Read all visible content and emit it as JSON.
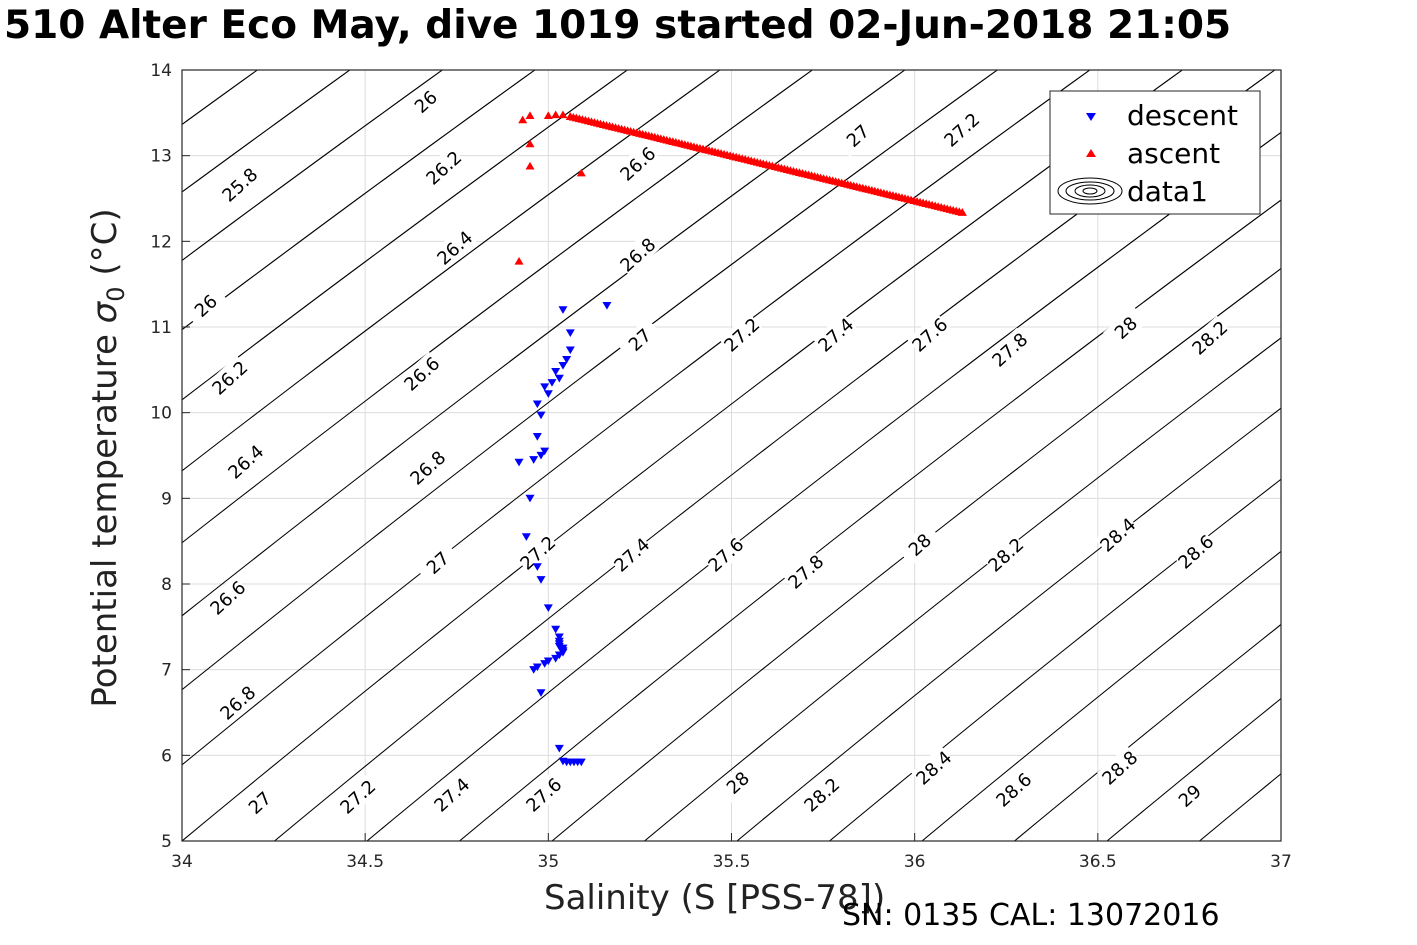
{
  "title": "510 Alter Eco May, dive 1019 started 02-Jun-2018 21:05",
  "footer": "SN: 0135  CAL: 13072016",
  "chart_data": {
    "type": "scatter",
    "title": "510 Alter Eco May, dive 1019 started 02-Jun-2018 21:05",
    "xlabel": "Salinity (S [PSS-78])",
    "ylabel": "Potential temperature σ_0 (°C)",
    "ylabel_main": "Potential temperature ",
    "ylabel_sigma": "σ",
    "ylabel_sub": "0",
    "ylabel_unit": " (°C)",
    "xlim": [
      34,
      37
    ],
    "ylim": [
      5,
      14
    ],
    "xticks": [
      34,
      34.5,
      35,
      35.5,
      36,
      36.5,
      37
    ],
    "xtick_labels": [
      "34",
      "34.5",
      "35",
      "35.5",
      "36",
      "36.5",
      "37"
    ],
    "yticks": [
      5,
      6,
      7,
      8,
      9,
      10,
      11,
      12,
      13,
      14
    ],
    "ytick_labels": [
      "5",
      "6",
      "7",
      "8",
      "9",
      "10",
      "11",
      "12",
      "13",
      "14"
    ],
    "grid": true,
    "legend_position": "top-right",
    "legend": [
      "descent",
      "ascent",
      "data1"
    ],
    "colors": {
      "descent": "#0000ff",
      "ascent": "#ff0000",
      "contour": "#000000",
      "grid": "#dcdcdc"
    },
    "series": [
      {
        "name": "descent",
        "marker": "triangle-down",
        "x": [
          35.16,
          35.04,
          35.06,
          35.06,
          35.05,
          35.04,
          35.02,
          35.03,
          35.01,
          34.99,
          35.0,
          34.97,
          34.98,
          34.97,
          34.99,
          34.98,
          34.96,
          34.92,
          34.95,
          34.94,
          34.97,
          34.98,
          35.0,
          35.02,
          35.03,
          35.03,
          35.03,
          35.03,
          35.04,
          35.04,
          35.04,
          35.03,
          35.02,
          35.0,
          34.99,
          34.97,
          34.96,
          34.98,
          35.03,
          35.04,
          35.05,
          35.06,
          35.07,
          35.08,
          35.09
        ],
        "y": [
          11.25,
          11.2,
          10.93,
          10.73,
          10.62,
          10.55,
          10.48,
          10.4,
          10.35,
          10.3,
          10.22,
          10.1,
          9.97,
          9.72,
          9.55,
          9.5,
          9.45,
          9.42,
          9.0,
          8.55,
          8.2,
          8.05,
          7.72,
          7.47,
          7.38,
          7.33,
          7.3,
          7.27,
          7.25,
          7.22,
          7.2,
          7.17,
          7.13,
          7.1,
          7.07,
          7.03,
          7.0,
          6.73,
          6.08,
          5.93,
          5.92,
          5.92,
          5.92,
          5.92,
          5.92
        ]
      },
      {
        "name": "ascent",
        "marker": "triangle-up",
        "x": [
          34.92,
          34.95,
          34.95,
          34.95,
          34.93,
          35.09,
          35.0,
          35.02,
          35.04,
          35.06,
          36.13
        ],
        "y": [
          11.77,
          12.88,
          13.14,
          13.47,
          13.42,
          12.8,
          13.47,
          13.48,
          13.48,
          13.46,
          12.34
        ]
      },
      {
        "name": "data1",
        "type": "contour",
        "description_of_levels": "sigma-0 isopycnals",
        "label_values": [
          "25.8",
          "26",
          "26.2",
          "26.4",
          "26.6",
          "26.8",
          "27",
          "27.2",
          "27.4",
          "27.6",
          "27.8",
          "28",
          "28.2",
          "28.4",
          "28.6",
          "28.8",
          "29"
        ]
      }
    ]
  }
}
